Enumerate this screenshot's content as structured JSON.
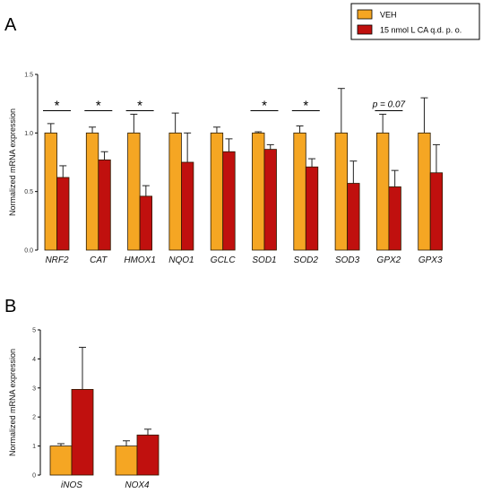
{
  "legend": {
    "items": [
      {
        "label": "VEH",
        "color": "#F5A623"
      },
      {
        "label": "15 nmol L CA q.d. p. o.",
        "color": "#C0100E"
      }
    ]
  },
  "chart_data": [
    {
      "panel": "A",
      "type": "bar",
      "ylabel": "Normalized mRNA expression",
      "ylim": [
        0,
        1.5
      ],
      "yticks": [
        "0.0",
        "0.5",
        "1.0",
        "1.5"
      ],
      "categories": [
        "NRF2",
        "CAT",
        "HMOX1",
        "NQO1",
        "GCLC",
        "SOD1",
        "SOD2",
        "SOD3",
        "GPX2",
        "GPX3"
      ],
      "series": [
        {
          "name": "VEH",
          "color": "#F5A623",
          "values": [
            1.0,
            1.0,
            1.0,
            1.0,
            1.0,
            1.0,
            1.0,
            1.0,
            1.0,
            1.0
          ],
          "errors": [
            0.08,
            0.05,
            0.16,
            0.17,
            0.05,
            0.01,
            0.06,
            0.38,
            0.16,
            0.3
          ]
        },
        {
          "name": "15 nmol L CA q.d. p. o.",
          "color": "#C0100E",
          "values": [
            0.62,
            0.77,
            0.46,
            0.75,
            0.84,
            0.86,
            0.71,
            0.57,
            0.54,
            0.66
          ],
          "errors": [
            0.1,
            0.07,
            0.09,
            0.25,
            0.11,
            0.04,
            0.07,
            0.19,
            0.14,
            0.24
          ]
        }
      ],
      "annotations": [
        {
          "category": "NRF2",
          "text": "*"
        },
        {
          "category": "CAT",
          "text": "*"
        },
        {
          "category": "HMOX1",
          "text": "*"
        },
        {
          "category": "SOD1",
          "text": "*"
        },
        {
          "category": "SOD2",
          "text": "*"
        },
        {
          "category": "GPX2",
          "text": "p = 0.07"
        }
      ]
    },
    {
      "panel": "B",
      "type": "bar",
      "ylabel": "Normalized mRNA expression",
      "ylim": [
        0,
        5
      ],
      "yticks": [
        "0",
        "1",
        "2",
        "3",
        "4",
        "5"
      ],
      "categories": [
        "iNOS",
        "NOX4"
      ],
      "series": [
        {
          "name": "VEH",
          "color": "#F5A623",
          "values": [
            1.0,
            1.0
          ],
          "errors": [
            0.08,
            0.18
          ]
        },
        {
          "name": "15 nmol L CA q.d. p. o.",
          "color": "#C0100E",
          "values": [
            2.95,
            1.38
          ],
          "errors": [
            1.45,
            0.2
          ]
        }
      ]
    }
  ]
}
